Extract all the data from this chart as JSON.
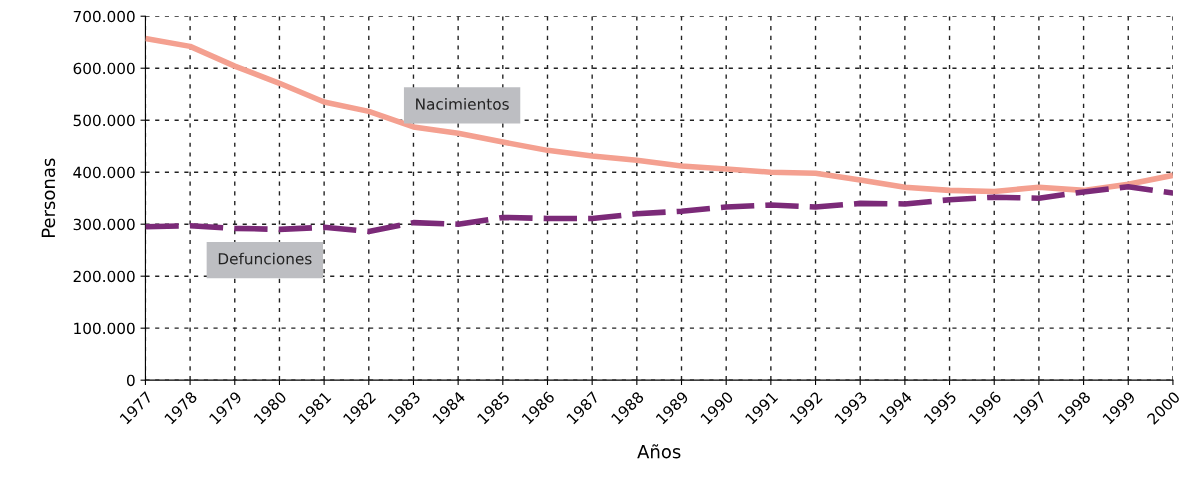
{
  "chart_data": {
    "type": "line",
    "xlabel": "Años",
    "ylabel": "Personas",
    "categories": [
      "1977",
      "1978",
      "1979",
      "1980",
      "1981",
      "1982",
      "1983",
      "1984",
      "1985",
      "1986",
      "1987",
      "1988",
      "1989",
      "1990",
      "1991",
      "1992",
      "1993",
      "1994",
      "1995",
      "1996",
      "1997",
      "1998",
      "1999",
      "2000"
    ],
    "series": [
      {
        "name": "Nacimientos",
        "color": "#f4a090",
        "line_style": "solid",
        "values": [
          657000,
          642000,
          604000,
          571000,
          535000,
          517000,
          487000,
          475000,
          458000,
          442000,
          431000,
          423000,
          412000,
          406000,
          400000,
          398000,
          385000,
          371000,
          365000,
          363000,
          371000,
          365000,
          377000,
          394000
        ]
      },
      {
        "name": "Defunciones",
        "color": "#7b2a78",
        "line_style": "dashed",
        "values": [
          295000,
          297000,
          292000,
          290000,
          294000,
          286000,
          303000,
          300000,
          313000,
          311000,
          311000,
          320000,
          325000,
          333000,
          337000,
          333000,
          340000,
          339000,
          347000,
          352000,
          350000,
          362000,
          372000,
          360000
        ]
      }
    ],
    "ylim": [
      0,
      700000
    ],
    "yticks": [
      0,
      {
        "value": 100000,
        "label": "100.000"
      },
      {
        "value": 200000,
        "label": "200.000"
      },
      {
        "value": 300000,
        "label": "300.000"
      },
      {
        "value": 400000,
        "label": "400.000"
      },
      {
        "value": 500000,
        "label": "500.000"
      },
      {
        "value": 600000,
        "label": "600.000"
      },
      {
        "value": 700000,
        "label": "700.000"
      }
    ],
    "grid": true,
    "legend": false,
    "marker": "none"
  }
}
